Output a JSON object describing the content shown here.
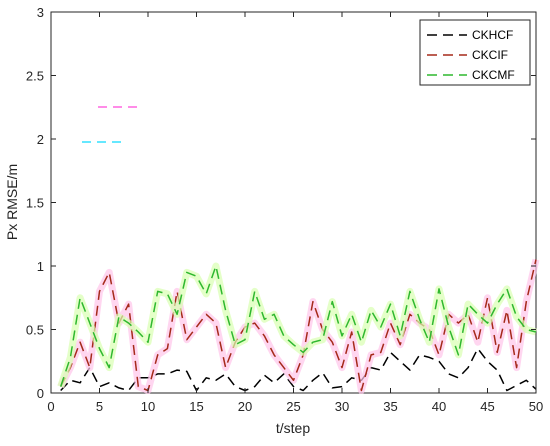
{
  "chart_data": {
    "type": "line",
    "xlabel": "t/step",
    "ylabel": "Px RMSE/m",
    "xlim": [
      0,
      50
    ],
    "ylim": [
      0,
      3
    ],
    "xticks": [
      0,
      5,
      10,
      15,
      20,
      25,
      30,
      35,
      40,
      45,
      50
    ],
    "yticks": [
      0,
      0.5,
      1,
      1.5,
      2,
      2.5,
      3
    ],
    "grid": false,
    "legend_position": "top-right",
    "series": [
      {
        "name": "CKHCF",
        "color": "#000000",
        "x": [
          1,
          2,
          3,
          4,
          5,
          6,
          7,
          8,
          9,
          10,
          11,
          12,
          13,
          14,
          15,
          16,
          17,
          18,
          19,
          20,
          21,
          22,
          23,
          24,
          25,
          26,
          27,
          28,
          29,
          30,
          31,
          32,
          33,
          34,
          35,
          36,
          37,
          38,
          39,
          40,
          41,
          42,
          43,
          44,
          45,
          46,
          47,
          48,
          49,
          50
        ],
        "values": [
          0.02,
          0.1,
          0.08,
          0.2,
          0.05,
          0.08,
          0.04,
          0.02,
          0.12,
          0.12,
          0.15,
          0.15,
          0.18,
          0.17,
          0.02,
          0.12,
          0.1,
          0.15,
          0.05,
          0.02,
          0.05,
          0.14,
          0.08,
          0.15,
          0.05,
          0.02,
          0.1,
          0.16,
          0.04,
          0.05,
          0.12,
          0.1,
          0.2,
          0.18,
          0.32,
          0.25,
          0.18,
          0.3,
          0.28,
          0.25,
          0.15,
          0.12,
          0.2,
          0.35,
          0.25,
          0.18,
          0.02,
          0.06,
          0.1,
          0.03
        ]
      },
      {
        "name": "CKCIF",
        "color": "#a52a1a",
        "x": [
          1,
          2,
          3,
          4,
          5,
          6,
          7,
          8,
          9,
          10,
          11,
          12,
          13,
          14,
          15,
          16,
          17,
          18,
          19,
          20,
          21,
          22,
          23,
          24,
          25,
          26,
          27,
          28,
          29,
          30,
          31,
          32,
          33,
          34,
          35,
          36,
          37,
          38,
          39,
          40,
          41,
          42,
          43,
          44,
          45,
          46,
          47,
          48,
          49,
          50
        ],
        "values": [
          0.05,
          0.2,
          0.4,
          0.2,
          0.8,
          0.95,
          0.55,
          0.7,
          0.05,
          0.02,
          0.3,
          0.35,
          0.8,
          0.42,
          0.52,
          0.62,
          0.55,
          0.2,
          0.4,
          0.52,
          0.55,
          0.45,
          0.3,
          0.2,
          0.1,
          0.3,
          0.72,
          0.5,
          0.4,
          0.2,
          0.48,
          0.02,
          0.3,
          0.32,
          0.55,
          0.38,
          0.62,
          0.55,
          0.5,
          0.3,
          0.62,
          0.55,
          0.62,
          0.4,
          0.75,
          0.32,
          0.65,
          0.2,
          0.72,
          1.05
        ]
      },
      {
        "name": "CKCMF",
        "color": "#2fb82f",
        "x": [
          1,
          2,
          3,
          4,
          5,
          6,
          7,
          8,
          9,
          10,
          11,
          12,
          13,
          14,
          15,
          16,
          17,
          18,
          19,
          20,
          21,
          22,
          23,
          24,
          25,
          26,
          27,
          28,
          29,
          30,
          31,
          32,
          33,
          34,
          35,
          36,
          37,
          38,
          39,
          40,
          41,
          42,
          43,
          44,
          45,
          46,
          47,
          48,
          49,
          50
        ],
        "values": [
          0.05,
          0.28,
          0.75,
          0.55,
          0.35,
          0.2,
          0.6,
          0.55,
          0.48,
          0.4,
          0.8,
          0.78,
          0.62,
          0.95,
          0.92,
          0.78,
          1.0,
          0.65,
          0.38,
          0.42,
          0.8,
          0.58,
          0.62,
          0.45,
          0.38,
          0.32,
          0.4,
          0.42,
          0.72,
          0.45,
          0.62,
          0.4,
          0.65,
          0.52,
          0.7,
          0.45,
          0.8,
          0.58,
          0.4,
          0.82,
          0.52,
          0.3,
          0.7,
          0.62,
          0.55,
          0.7,
          0.82,
          0.6,
          0.5,
          0.48
        ]
      }
    ]
  }
}
